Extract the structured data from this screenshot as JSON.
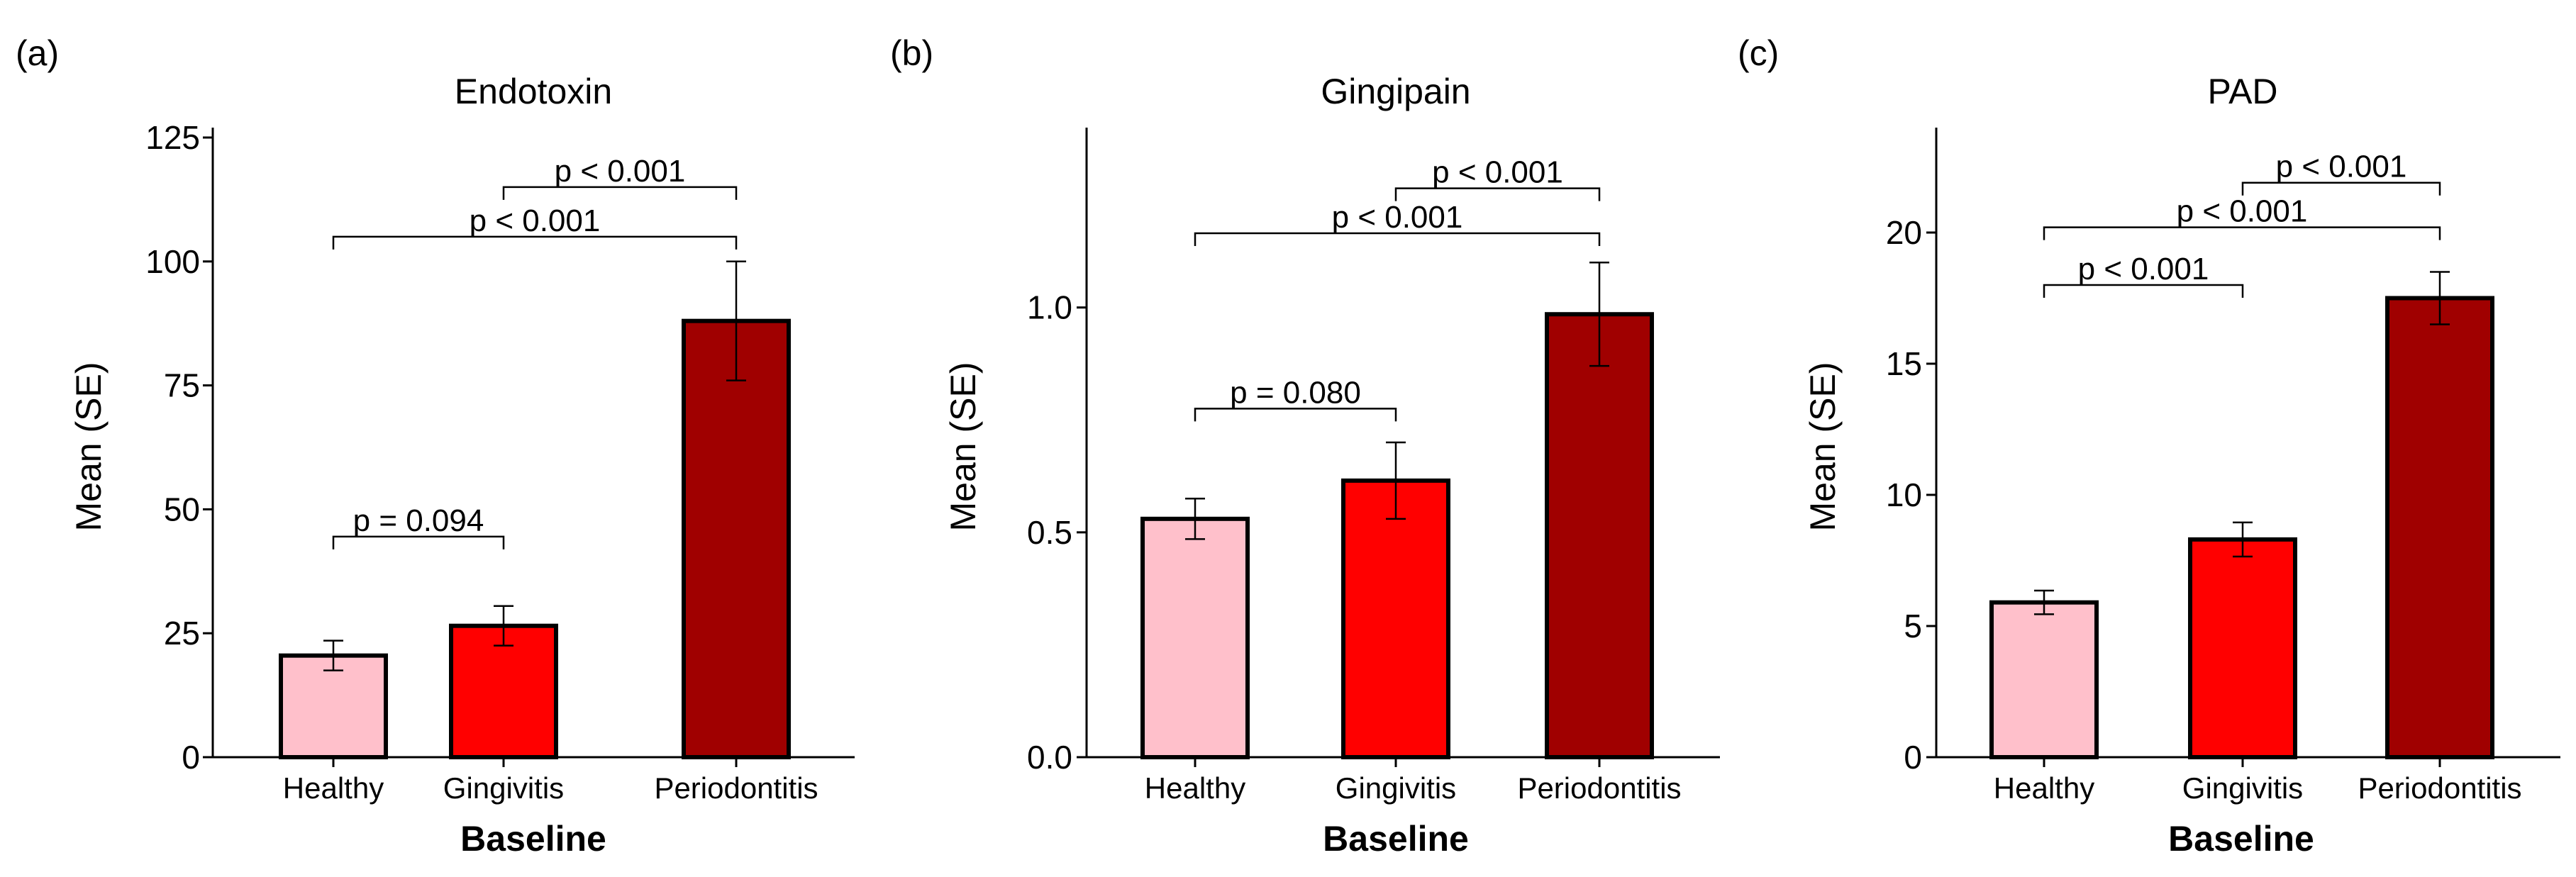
{
  "colors": {
    "healthy": "#ffc0cb",
    "gingivitis": "#ff0000",
    "periodontitis": "#a00000",
    "outline": "#000000"
  },
  "chart_data": [
    {
      "type": "bar",
      "panel": "(a)",
      "title": "Endotoxin",
      "xlabel": "Baseline",
      "ylabel": "Mean (SE)",
      "categories": [
        "Healthy",
        "Gingivitis",
        "Periodontitis"
      ],
      "values": [
        20.5,
        26.5,
        88
      ],
      "errors": [
        3,
        4,
        12
      ],
      "ylim": [
        0,
        127
      ],
      "yticks": [
        0,
        25,
        50,
        75,
        100,
        125
      ],
      "ytick_labels": [
        "0",
        "25",
        "50",
        "75",
        "100",
        "125"
      ],
      "comparisons": [
        {
          "from": 0,
          "to": 1,
          "y": 44.5,
          "label": "p = 0.094"
        },
        {
          "from": 0,
          "to": 2,
          "y": 105,
          "label": "p < 0.001"
        },
        {
          "from": 1,
          "to": 2,
          "y": 115,
          "label": "p < 0.001"
        }
      ]
    },
    {
      "type": "bar",
      "panel": "(b)",
      "title": "Gingipain",
      "xlabel": "Baseline",
      "ylabel": "Mean (SE)",
      "categories": [
        "Healthy",
        "Gingivitis",
        "Periodontitis"
      ],
      "values": [
        0.53,
        0.615,
        0.985
      ],
      "errors": [
        0.045,
        0.085,
        0.115
      ],
      "ylim": [
        0,
        1.4
      ],
      "yticks": [
        0,
        0.5,
        1.0
      ],
      "ytick_labels": [
        "0.0",
        "0.5",
        "1.0"
      ],
      "comparisons": [
        {
          "from": 0,
          "to": 1,
          "y": 0.775,
          "label": "p = 0.080"
        },
        {
          "from": 0,
          "to": 2,
          "y": 1.165,
          "label": "p < 0.001"
        },
        {
          "from": 1,
          "to": 2,
          "y": 1.265,
          "label": "p < 0.001"
        }
      ]
    },
    {
      "type": "bar",
      "panel": "(c)",
      "title": "PAD",
      "xlabel": "Baseline",
      "ylabel": "Mean (SE)",
      "categories": [
        "Healthy",
        "Gingivitis",
        "Periodontitis"
      ],
      "values": [
        5.9,
        8.3,
        17.5
      ],
      "errors": [
        0.45,
        0.65,
        1.0
      ],
      "ylim": [
        0,
        24
      ],
      "yticks": [
        0,
        5,
        10,
        15,
        20
      ],
      "ytick_labels": [
        "0",
        "5",
        "10",
        "15",
        "20"
      ],
      "comparisons": [
        {
          "from": 0,
          "to": 1,
          "y": 18.0,
          "label": "p < 0.001"
        },
        {
          "from": 0,
          "to": 2,
          "y": 20.2,
          "label": "p < 0.001"
        },
        {
          "from": 1,
          "to": 2,
          "y": 21.9,
          "label": "p < 0.001"
        }
      ]
    }
  ]
}
